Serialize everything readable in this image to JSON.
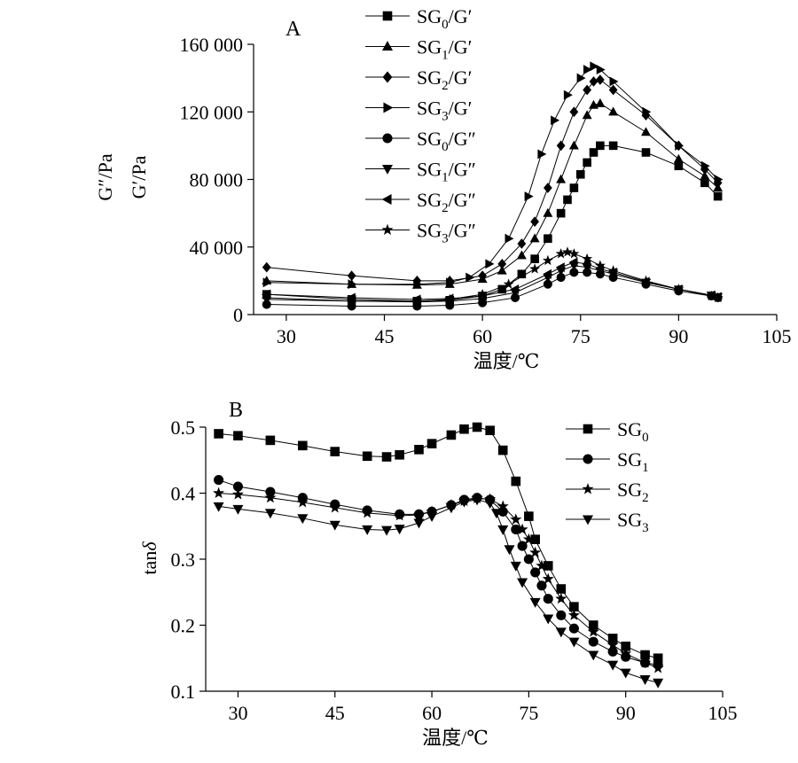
{
  "chart_data": [
    {
      "panel_label": "A",
      "type": "line",
      "xlabel": "温度/℃",
      "ylabel_outer": "G″/Pa",
      "ylabel_inner": "G′/Pa",
      "xlim": [
        25,
        105
      ],
      "ylim": [
        0,
        160000
      ],
      "xticks": [
        30,
        45,
        60,
        75,
        90,
        105
      ],
      "yticks": [
        0,
        40000,
        80000,
        120000,
        160000
      ],
      "xtick_labels": [
        "30",
        "45",
        "60",
        "75",
        "90",
        "105"
      ],
      "ytick_labels": [
        "0",
        "40 000",
        "80 000",
        "120 000",
        "160 000"
      ],
      "legend_position": "top-center",
      "legend": [
        {
          "base": "SG",
          "sub": "0",
          "suffix": "/G′",
          "marker": "square"
        },
        {
          "base": "SG",
          "sub": "1",
          "suffix": "/G′",
          "marker": "triangle-up"
        },
        {
          "base": "SG",
          "sub": "2",
          "suffix": "/G′",
          "marker": "diamond"
        },
        {
          "base": "SG",
          "sub": "3",
          "suffix": "/G′",
          "marker": "triangle-right"
        },
        {
          "base": "SG",
          "sub": "0",
          "suffix": "/G″",
          "marker": "circle"
        },
        {
          "base": "SG",
          "sub": "1",
          "suffix": "/G″",
          "marker": "triangle-down"
        },
        {
          "base": "SG",
          "sub": "2",
          "suffix": "/G″",
          "marker": "triangle-left"
        },
        {
          "base": "SG",
          "sub": "3",
          "suffix": "/G″",
          "marker": "star"
        }
      ],
      "series": [
        {
          "name": "SG0/G′",
          "marker": "square",
          "x": [
            27,
            40,
            50,
            55,
            60,
            63,
            66,
            68,
            70,
            72,
            73,
            74,
            75,
            76,
            77,
            78,
            80,
            85,
            90,
            94,
            96
          ],
          "y": [
            12000,
            9000,
            8000,
            8500,
            11000,
            15000,
            24000,
            33000,
            45000,
            60000,
            68000,
            75000,
            83000,
            90000,
            96000,
            100000,
            100000,
            96000,
            88000,
            78000,
            70000
          ]
        },
        {
          "name": "SG1/G′",
          "marker": "triangle-up",
          "x": [
            27,
            40,
            50,
            55,
            60,
            63,
            66,
            68,
            70,
            72,
            74,
            76,
            77,
            78,
            80,
            85,
            90,
            94,
            96
          ],
          "y": [
            20000,
            18000,
            17500,
            18000,
            21000,
            26000,
            35000,
            45000,
            60000,
            80000,
            100000,
            118000,
            124000,
            125000,
            120000,
            108000,
            92000,
            82000,
            75000
          ]
        },
        {
          "name": "SG2/G′",
          "marker": "diamond",
          "x": [
            27,
            40,
            50,
            55,
            60,
            63,
            66,
            68,
            70,
            72,
            74,
            76,
            77,
            78,
            80,
            85,
            90,
            94,
            96
          ],
          "y": [
            28000,
            23000,
            20000,
            20000,
            23000,
            30000,
            42000,
            55000,
            75000,
            100000,
            120000,
            133000,
            138000,
            139000,
            133000,
            118000,
            100000,
            86000,
            78000
          ]
        },
        {
          "name": "SG3/G′",
          "marker": "triangle-right",
          "x": [
            27,
            40,
            50,
            55,
            58,
            61,
            64,
            67,
            69,
            71,
            73,
            75,
            76,
            77,
            78,
            80,
            85,
            90,
            94,
            96
          ],
          "y": [
            19000,
            18000,
            18000,
            19000,
            22000,
            30000,
            45000,
            70000,
            95000,
            115000,
            130000,
            140000,
            145000,
            147000,
            145000,
            138000,
            120000,
            100000,
            88000,
            80000
          ]
        },
        {
          "name": "SG0/G″",
          "marker": "circle",
          "x": [
            27,
            40,
            50,
            55,
            60,
            65,
            70,
            72,
            74,
            76,
            78,
            80,
            85,
            90,
            95,
            96
          ],
          "y": [
            6000,
            5000,
            5000,
            5500,
            7000,
            10000,
            18000,
            22000,
            25000,
            25000,
            24000,
            22000,
            18000,
            14000,
            11000,
            10000
          ]
        },
        {
          "name": "SG1/G″",
          "marker": "triangle-down",
          "x": [
            27,
            40,
            50,
            55,
            60,
            65,
            70,
            72,
            74,
            76,
            78,
            80,
            85,
            90,
            95,
            96
          ],
          "y": [
            10000,
            8000,
            7500,
            8000,
            9500,
            13000,
            22000,
            26000,
            29000,
            28000,
            26000,
            24000,
            19000,
            15000,
            11500,
            10500
          ]
        },
        {
          "name": "SG2/G″",
          "marker": "triangle-left",
          "x": [
            27,
            40,
            50,
            55,
            60,
            65,
            70,
            72,
            74,
            76,
            78,
            80,
            85,
            90,
            95,
            96
          ],
          "y": [
            12000,
            10000,
            9000,
            9500,
            11000,
            15000,
            24000,
            28000,
            31000,
            30000,
            27000,
            25000,
            19500,
            15000,
            11500,
            10500
          ]
        },
        {
          "name": "SG3/G″",
          "marker": "star",
          "x": [
            27,
            40,
            50,
            55,
            60,
            64,
            68,
            70,
            72,
            73,
            74,
            76,
            78,
            80,
            85,
            90,
            95,
            96
          ],
          "y": [
            9000,
            8000,
            8000,
            9000,
            12000,
            18000,
            27000,
            32000,
            36000,
            37000,
            36000,
            33000,
            29000,
            26000,
            20000,
            15000,
            11000,
            10000
          ]
        }
      ]
    },
    {
      "panel_label": "B",
      "type": "line",
      "xlabel": "温度/℃",
      "ylabel_main": "tan",
      "ylabel_italic": "δ",
      "xlim": [
        25,
        105
      ],
      "ylim": [
        0.1,
        0.5
      ],
      "xticks": [
        30,
        45,
        60,
        75,
        90,
        105
      ],
      "yticks": [
        0.1,
        0.2,
        0.3,
        0.4,
        0.5
      ],
      "xtick_labels": [
        "30",
        "45",
        "60",
        "75",
        "90",
        "105"
      ],
      "ytick_labels": [
        "0.1",
        "0.2",
        "0.3",
        "0.4",
        "0.5"
      ],
      "legend_position": "top-right",
      "legend": [
        {
          "base": "SG",
          "sub": "0",
          "suffix": "",
          "marker": "square"
        },
        {
          "base": "SG",
          "sub": "1",
          "suffix": "",
          "marker": "circle"
        },
        {
          "base": "SG",
          "sub": "2",
          "suffix": "",
          "marker": "star"
        },
        {
          "base": "SG",
          "sub": "3",
          "suffix": "",
          "marker": "triangle-down"
        }
      ],
      "series": [
        {
          "name": "SG0",
          "marker": "square",
          "x": [
            27,
            30,
            35,
            40,
            45,
            50,
            53,
            55,
            58,
            60,
            63,
            65,
            67,
            69,
            71,
            73,
            75,
            76,
            78,
            80,
            82,
            85,
            88,
            90,
            93,
            95
          ],
          "y": [
            0.49,
            0.487,
            0.48,
            0.472,
            0.463,
            0.456,
            0.455,
            0.458,
            0.466,
            0.475,
            0.488,
            0.497,
            0.5,
            0.495,
            0.465,
            0.418,
            0.365,
            0.33,
            0.29,
            0.255,
            0.228,
            0.2,
            0.18,
            0.168,
            0.155,
            0.15
          ]
        },
        {
          "name": "SG1",
          "marker": "circle",
          "x": [
            27,
            30,
            35,
            40,
            45,
            50,
            55,
            58,
            60,
            63,
            65,
            67,
            69,
            71,
            73,
            74,
            75,
            76,
            77,
            78,
            80,
            82,
            85,
            88,
            90,
            93,
            95
          ],
          "y": [
            0.42,
            0.41,
            0.402,
            0.393,
            0.383,
            0.374,
            0.368,
            0.368,
            0.372,
            0.382,
            0.39,
            0.393,
            0.39,
            0.372,
            0.345,
            0.32,
            0.3,
            0.28,
            0.26,
            0.24,
            0.215,
            0.195,
            0.175,
            0.16,
            0.152,
            0.143,
            0.14
          ]
        },
        {
          "name": "SG2",
          "marker": "star",
          "x": [
            27,
            30,
            35,
            40,
            45,
            50,
            55,
            58,
            60,
            63,
            65,
            67,
            69,
            71,
            73,
            74,
            75,
            76,
            77,
            78,
            80,
            82,
            85,
            88,
            90,
            93,
            95
          ],
          "y": [
            0.4,
            0.398,
            0.393,
            0.386,
            0.378,
            0.37,
            0.366,
            0.367,
            0.372,
            0.382,
            0.388,
            0.392,
            0.391,
            0.38,
            0.36,
            0.345,
            0.33,
            0.31,
            0.29,
            0.27,
            0.24,
            0.215,
            0.19,
            0.17,
            0.157,
            0.143,
            0.135
          ]
        },
        {
          "name": "SG3",
          "marker": "triangle-down",
          "x": [
            27,
            30,
            35,
            40,
            45,
            50,
            53,
            55,
            58,
            60,
            63,
            65,
            67,
            69,
            70,
            71,
            72,
            73,
            74,
            76,
            78,
            80,
            82,
            85,
            88,
            90,
            93,
            95
          ],
          "y": [
            0.38,
            0.376,
            0.37,
            0.362,
            0.352,
            0.345,
            0.344,
            0.346,
            0.355,
            0.365,
            0.378,
            0.387,
            0.39,
            0.385,
            0.37,
            0.345,
            0.315,
            0.29,
            0.265,
            0.235,
            0.21,
            0.19,
            0.175,
            0.155,
            0.14,
            0.128,
            0.118,
            0.113
          ]
        }
      ]
    }
  ]
}
